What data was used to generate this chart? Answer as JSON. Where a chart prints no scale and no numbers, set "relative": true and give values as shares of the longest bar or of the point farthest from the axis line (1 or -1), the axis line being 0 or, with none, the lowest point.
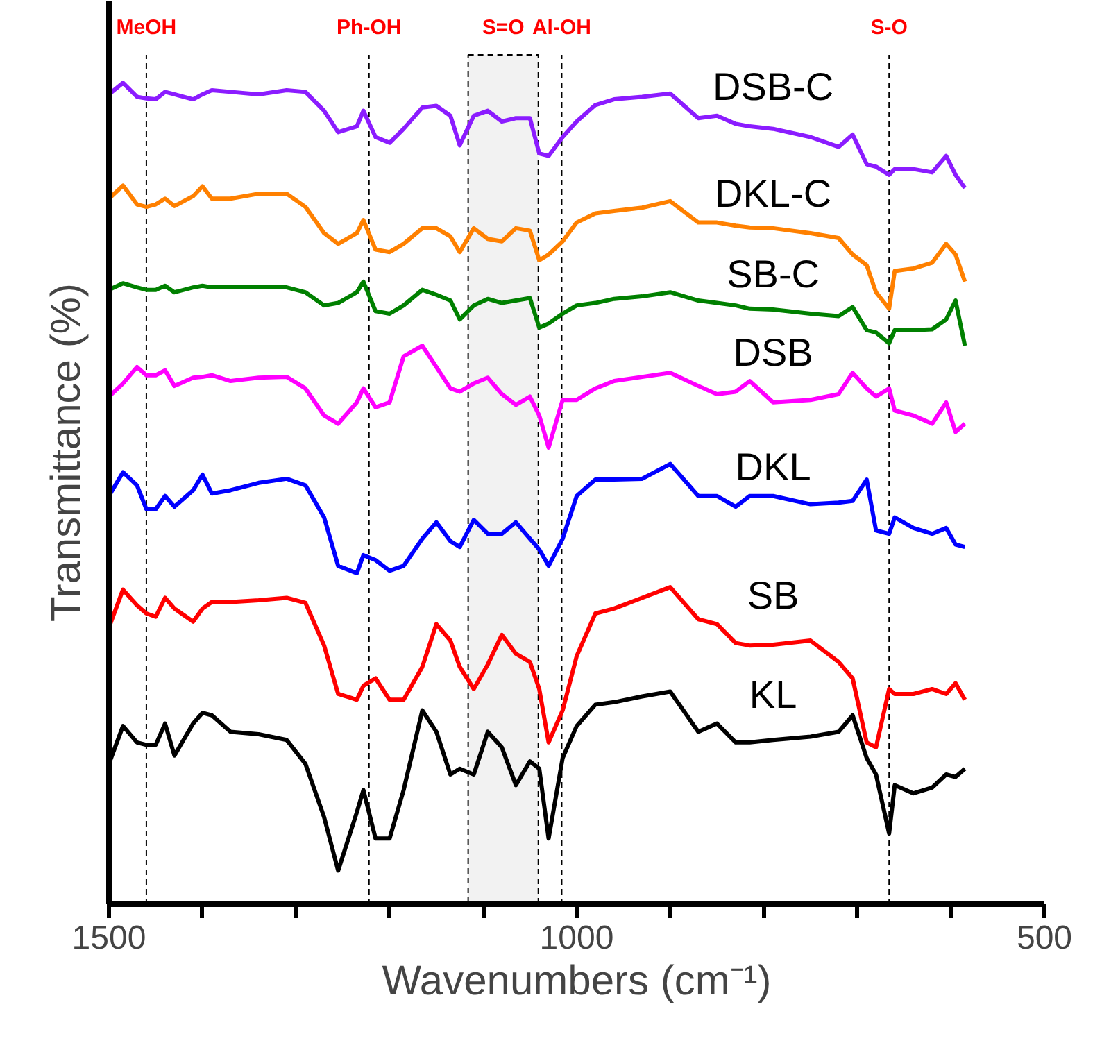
{
  "chart_data": {
    "type": "line",
    "relative": true,
    "xlabel": "Wavenumbers (cm⁻¹)",
    "ylabel": "Transmittance (%)",
    "xlim": [
      1500,
      500
    ],
    "xticks": [
      1500,
      {
        "value": 1400,
        "label": null
      },
      {
        "value": 1300,
        "label": null
      },
      {
        "value": 1200,
        "label": null
      },
      {
        "value": 1100,
        "label": null
      },
      1000,
      {
        "value": 900,
        "label": null
      },
      {
        "value": 800,
        "label": null
      },
      {
        "value": 700,
        "label": null
      },
      {
        "value": 600,
        "label": null
      },
      500
    ],
    "grid": false,
    "legend": false,
    "marker": "none",
    "line_style": "solid",
    "tick_labels": "x",
    "x": [
      1500,
      1485,
      1470,
      1460,
      1450,
      1440,
      1430,
      1410,
      1400,
      1390,
      1370,
      1340,
      1310,
      1290,
      1270,
      1255,
      1235,
      1228,
      1215,
      1200,
      1185,
      1165,
      1150,
      1135,
      1125,
      1110,
      1095,
      1080,
      1065,
      1050,
      1040,
      1030,
      1015,
      1000,
      980,
      960,
      930,
      900,
      870,
      850,
      830,
      815,
      790,
      750,
      720,
      705,
      690,
      680,
      666,
      660,
      640,
      620,
      605,
      595,
      585
    ],
    "series": [
      {
        "name": "DSB-C",
        "color": "#8b1cff",
        "values": [
          0.986,
          1,
          0.983,
          0.981,
          0.98,
          0.989,
          0.986,
          0.98,
          0.986,
          0.991,
          0.989,
          0.986,
          0.991,
          0.989,
          0.966,
          0.94,
          0.947,
          0.966,
          0.934,
          0.927,
          0.944,
          0.97,
          0.972,
          0.96,
          0.924,
          0.96,
          0.966,
          0.953,
          0.957,
          0.957,
          0.914,
          0.911,
          0.934,
          0.953,
          0.973,
          0.98,
          0.983,
          0.987,
          0.957,
          0.96,
          0.95,
          0.947,
          0.944,
          0.934,
          0.922,
          0.937,
          0.901,
          0.898,
          0.888,
          0.895,
          0.895,
          0.891,
          0.911,
          0.888,
          0.872
        ]
      },
      {
        "name": "DKL-C",
        "color": "#ff8000",
        "values": [
          0.859,
          0.875,
          0.852,
          0.849,
          0.852,
          0.859,
          0.85,
          0.862,
          0.874,
          0.859,
          0.859,
          0.865,
          0.865,
          0.849,
          0.817,
          0.804,
          0.817,
          0.833,
          0.797,
          0.794,
          0.804,
          0.823,
          0.823,
          0.813,
          0.794,
          0.823,
          0.81,
          0.807,
          0.823,
          0.82,
          0.784,
          0.791,
          0.807,
          0.83,
          0.841,
          0.844,
          0.848,
          0.856,
          0.83,
          0.83,
          0.826,
          0.824,
          0.823,
          0.817,
          0.811,
          0.791,
          0.778,
          0.745,
          0.725,
          0.771,
          0.774,
          0.781,
          0.804,
          0.791,
          0.758
        ]
      },
      {
        "name": "SB-C",
        "color": "#008000",
        "values": [
          0.748,
          0.756,
          0.751,
          0.748,
          0.748,
          0.753,
          0.745,
          0.751,
          0.753,
          0.751,
          0.751,
          0.751,
          0.751,
          0.745,
          0.729,
          0.732,
          0.745,
          0.758,
          0.722,
          0.719,
          0.729,
          0.748,
          0.742,
          0.735,
          0.712,
          0.729,
          0.737,
          0.732,
          0.735,
          0.738,
          0.702,
          0.707,
          0.719,
          0.729,
          0.732,
          0.737,
          0.74,
          0.745,
          0.735,
          0.732,
          0.729,
          0.725,
          0.724,
          0.719,
          0.716,
          0.727,
          0.699,
          0.696,
          0.683,
          0.699,
          0.699,
          0.7,
          0.712,
          0.735,
          0.68
        ]
      },
      {
        "name": "DSB",
        "color": "#ff00ff",
        "values": [
          0.618,
          0.634,
          0.654,
          0.644,
          0.644,
          0.65,
          0.631,
          0.641,
          0.642,
          0.644,
          0.637,
          0.641,
          0.642,
          0.628,
          0.595,
          0.585,
          0.611,
          0.628,
          0.605,
          0.611,
          0.667,
          0.68,
          0.654,
          0.628,
          0.624,
          0.634,
          0.641,
          0.621,
          0.608,
          0.618,
          0.595,
          0.556,
          0.614,
          0.614,
          0.628,
          0.637,
          0.642,
          0.647,
          0.631,
          0.621,
          0.624,
          0.637,
          0.611,
          0.614,
          0.621,
          0.647,
          0.628,
          0.618,
          0.628,
          0.601,
          0.595,
          0.585,
          0.611,
          0.575,
          0.585
        ]
      },
      {
        "name": "DKL",
        "color": "#0000ff",
        "values": [
          0.497,
          0.526,
          0.51,
          0.481,
          0.481,
          0.497,
          0.484,
          0.504,
          0.523,
          0.5,
          0.504,
          0.513,
          0.518,
          0.51,
          0.471,
          0.412,
          0.403,
          0.425,
          0.419,
          0.406,
          0.412,
          0.445,
          0.465,
          0.442,
          0.435,
          0.468,
          0.451,
          0.451,
          0.465,
          0.445,
          0.432,
          0.412,
          0.445,
          0.497,
          0.517,
          0.517,
          0.518,
          0.536,
          0.497,
          0.497,
          0.484,
          0.497,
          0.497,
          0.487,
          0.489,
          0.491,
          0.517,
          0.455,
          0.451,
          0.471,
          0.458,
          0.451,
          0.458,
          0.438,
          0.435
        ]
      },
      {
        "name": "SB",
        "color": "#ff0000",
        "values": [
          0.337,
          0.383,
          0.364,
          0.354,
          0.35,
          0.373,
          0.36,
          0.344,
          0.36,
          0.368,
          0.368,
          0.37,
          0.373,
          0.367,
          0.315,
          0.256,
          0.249,
          0.266,
          0.275,
          0.249,
          0.249,
          0.289,
          0.341,
          0.321,
          0.289,
          0.262,
          0.292,
          0.328,
          0.305,
          0.295,
          0.262,
          0.197,
          0.236,
          0.302,
          0.354,
          0.36,
          0.373,
          0.386,
          0.347,
          0.341,
          0.318,
          0.315,
          0.316,
          0.321,
          0.295,
          0.275,
          0.197,
          0.191,
          0.262,
          0.256,
          0.256,
          0.262,
          0.256,
          0.269,
          0.249
        ]
      },
      {
        "name": "KL",
        "color": "#000000",
        "values": [
          0.171,
          0.217,
          0.197,
          0.194,
          0.194,
          0.22,
          0.181,
          0.22,
          0.233,
          0.23,
          0.21,
          0.207,
          0.2,
          0.171,
          0.106,
          0.041,
          0.112,
          0.139,
          0.08,
          0.08,
          0.139,
          0.236,
          0.21,
          0.158,
          0.165,
          0.158,
          0.21,
          0.191,
          0.145,
          0.174,
          0.165,
          0.08,
          0.178,
          0.217,
          0.243,
          0.246,
          0.253,
          0.259,
          0.21,
          0.22,
          0.197,
          0.197,
          0.2,
          0.204,
          0.21,
          0.23,
          0.178,
          0.158,
          0.086,
          0.145,
          0.135,
          0.142,
          0.158,
          0.155,
          0.165
        ]
      }
    ],
    "ref_lines": [
      {
        "axis": "x",
        "value": 1460,
        "label": "MeOH",
        "color": "#000000",
        "line_style": "dashed"
      },
      {
        "axis": "x",
        "value": 1222,
        "label": "Ph-OH",
        "color": "#000000",
        "line_style": "dashed"
      },
      {
        "axis": "x",
        "value": 1016,
        "label": "Al-OH",
        "color": "#000000",
        "line_style": "dashed"
      },
      {
        "axis": "x",
        "value": 666,
        "label": "S-O",
        "color": "#000000",
        "line_style": "dashed"
      }
    ],
    "bands": [
      {
        "axis": "x",
        "from": 1116,
        "to": 1041,
        "label": "S=O",
        "color": "#000000"
      }
    ]
  }
}
